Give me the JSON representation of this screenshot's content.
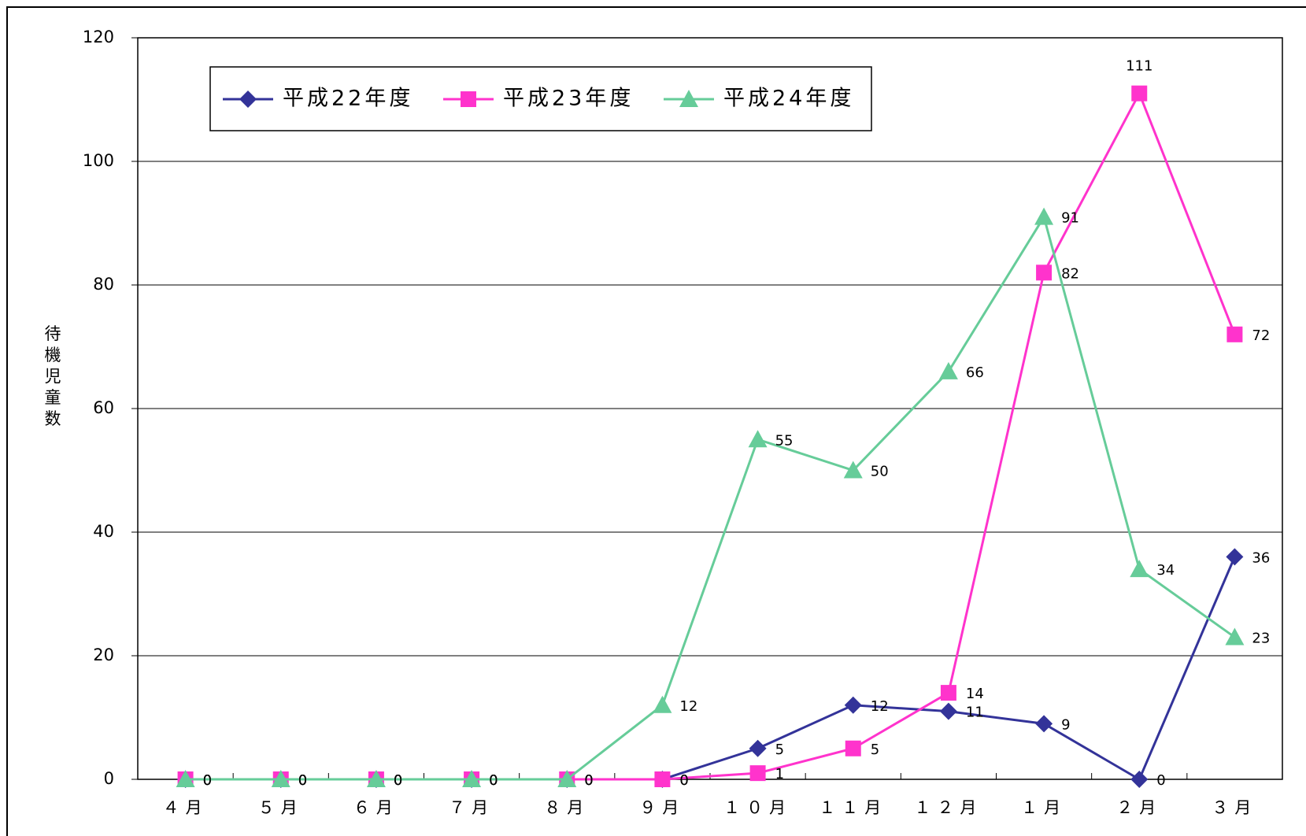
{
  "chart_data": {
    "type": "line",
    "y_label": "待機児童数",
    "categories": [
      "４月",
      "５月",
      "６月",
      "７月",
      "８月",
      "９月",
      "１０月",
      "１１月",
      "１２月",
      "１月",
      "２月",
      "３月"
    ],
    "series": [
      {
        "name": "平成22年度",
        "color": "#333399",
        "marker": "diamond",
        "values": [
          0,
          0,
          0,
          0,
          0,
          0,
          5,
          12,
          11,
          9,
          0,
          36
        ]
      },
      {
        "name": "平成23年度",
        "color": "#ff33cc",
        "marker": "square",
        "values": [
          0,
          0,
          0,
          0,
          0,
          0,
          1,
          5,
          14,
          82,
          111,
          72
        ]
      },
      {
        "name": "平成24年度",
        "color": "#66cc99",
        "marker": "triangle",
        "values": [
          0,
          0,
          0,
          0,
          0,
          12,
          55,
          50,
          66,
          91,
          34,
          23
        ]
      }
    ],
    "ylim": [
      0,
      120
    ],
    "yticks": [
      0,
      20,
      40,
      60,
      80,
      100,
      120
    ],
    "grid": true,
    "legend": "top-left"
  }
}
